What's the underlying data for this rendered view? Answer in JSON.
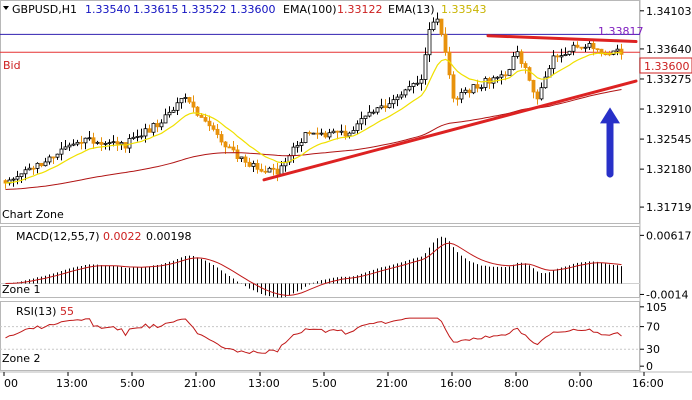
{
  "colors": {
    "bull": "#000000",
    "bear": "#e8920c",
    "ema100": "#b01414",
    "ema13": "#f0e000",
    "bid_line": "#e63232",
    "top_line": "#3020b0",
    "trend": "#dd2222",
    "arrow": "#2830c8",
    "macd_hist": "#000000",
    "macd_signal": "#c01818",
    "rsi": "#c01818",
    "label_blue": "#1010c0",
    "label_red": "#cc2020",
    "label_purple": "#8020c0"
  },
  "header": {
    "symbol": "GBPUSD,H1",
    "open": "1.33540",
    "high": "1.33615",
    "low": "1.33522",
    "close": "1.33600",
    "ema100_label": "EMA(100)",
    "ema100_value": "1.33122",
    "ema13_label": "EMA(13)",
    "ema13_value": "1.33543"
  },
  "main_panel": {
    "zone_label": "Chart Zone",
    "bid_label": "Bid",
    "price_min": 1.3155,
    "price_max": 1.3421,
    "ticks": [
      "1.34103",
      "1.33640",
      "1.33275",
      "1.32910",
      "1.32545",
      "1.32180",
      "1.31719"
    ],
    "tick_values": [
      1.34103,
      1.3364,
      1.33275,
      1.3291,
      1.32545,
      1.3218,
      1.31719
    ],
    "top_line_value": 1.33817,
    "top_line_label": "1.33817",
    "bid_value": 1.336,
    "bid_tag": "1.33600"
  },
  "macd_panel": {
    "title": "MACD(12,55,7)",
    "value1": "0.0022",
    "value2": "0.00198",
    "zone_label": "Zone 1",
    "ticks": [
      "0.00617",
      "-0.0014"
    ],
    "tick_values": [
      0.00617,
      -0.0014
    ],
    "min": -0.0016,
    "max": 0.0066
  },
  "rsi_panel": {
    "title": "RSI(13)",
    "value": "55",
    "zone_label": "Zone 2",
    "ticks": [
      "105",
      "70",
      "30",
      "0"
    ],
    "tick_values": [
      105,
      70,
      30,
      0
    ],
    "min": -5,
    "max": 110
  },
  "time_axis": {
    "labels": [
      "00",
      "13:00",
      "5:00",
      "21:00",
      "13:00",
      "5:00",
      "21:00",
      "16:00",
      "8:00",
      "0:00",
      "16:00"
    ],
    "positions": [
      0,
      16,
      32,
      48,
      64,
      80,
      96,
      112,
      128,
      144,
      160
    ]
  },
  "trendlines": [
    {
      "name": "support-trendline",
      "from": [
        65,
        1.3205
      ],
      "to": [
        158,
        1.3325
      ]
    },
    {
      "name": "resistance-line",
      "from": [
        121,
        1.338
      ],
      "to": [
        158,
        1.3373
      ]
    }
  ],
  "arrow": {
    "bar": 151,
    "from": 1.3212,
    "to": 1.3293
  },
  "chart_data": {
    "type": "candlestick",
    "symbol": "GBPUSD",
    "timeframe": "H1",
    "bars": 155,
    "anchors": [
      [
        0,
        1.3199
      ],
      [
        10,
        1.3228
      ],
      [
        18,
        1.3255
      ],
      [
        30,
        1.3248
      ],
      [
        40,
        1.328
      ],
      [
        45,
        1.3305
      ],
      [
        55,
        1.3245
      ],
      [
        62,
        1.3222
      ],
      [
        68,
        1.3215
      ],
      [
        75,
        1.326
      ],
      [
        85,
        1.3262
      ],
      [
        96,
        1.33
      ],
      [
        104,
        1.333
      ],
      [
        106,
        1.339
      ],
      [
        108,
        1.34
      ],
      [
        111,
        1.3335
      ],
      [
        112,
        1.33
      ],
      [
        116,
        1.3315
      ],
      [
        125,
        1.3335
      ],
      [
        128,
        1.336
      ],
      [
        133,
        1.3305
      ],
      [
        137,
        1.3355
      ],
      [
        145,
        1.337
      ],
      [
        150,
        1.3357
      ],
      [
        154,
        1.336
      ]
    ],
    "series": [
      {
        "name": "EMA(100)",
        "value": 1.33122
      },
      {
        "name": "EMA(13)",
        "value": 1.33543
      }
    ],
    "ylim": [
      1.31719,
      1.34103
    ]
  }
}
